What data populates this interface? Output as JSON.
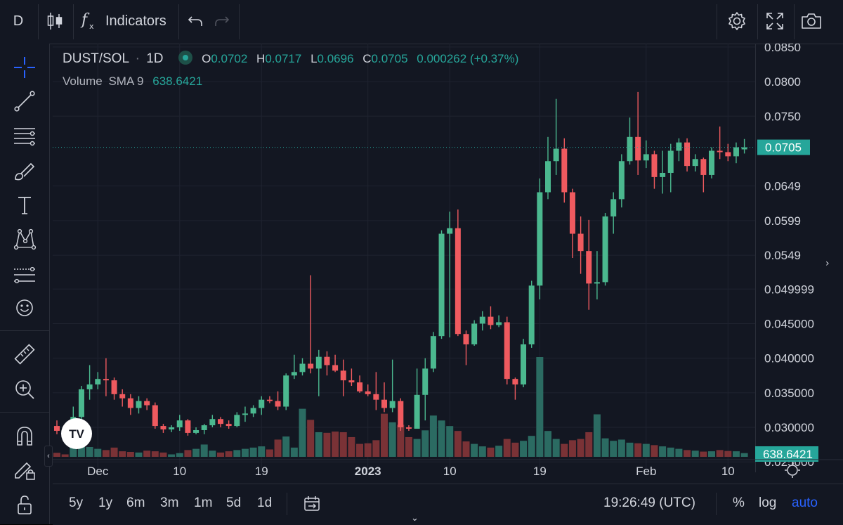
{
  "toolbar": {
    "symbol_short": "D",
    "indicators_label": "Indicators"
  },
  "icons": [
    "candles-icon",
    "fx-icon",
    "undo-icon",
    "redo-icon",
    "gear-icon",
    "fullscreen-icon",
    "camera-icon",
    "crosshair-icon",
    "trend-line-icon",
    "fib-icon",
    "brush-icon",
    "text-icon",
    "pattern-icon",
    "prediction-icon",
    "emoji-icon",
    "ruler-icon",
    "zoom-in-icon",
    "magnet-icon",
    "lock-drawing-icon",
    "lock-icon"
  ],
  "legend": {
    "symbol": "DUST/SOL",
    "separator": "·",
    "interval": "1D",
    "o_label": "O",
    "o_value": "0.0702",
    "h_label": "H",
    "h_value": "0.0717",
    "l_label": "L",
    "l_value": "0.0696",
    "c_label": "C",
    "c_value": "0.0705",
    "change": "0.000262 (+0.37%)",
    "volume_label": "Volume",
    "sma_label": "SMA 9",
    "volume_value": "638.6421"
  },
  "colors": {
    "up": "#26a69a",
    "up_candle": "#4bb88f",
    "down": "#ef5350",
    "down_candle": "#ef5a5f",
    "background": "#131722",
    "grid": "#1f2330",
    "price_tag": "#26a69a"
  },
  "price_axis": {
    "labels": [
      "0.0850",
      "0.0800",
      "0.0750",
      "0.0705",
      "0.0649",
      "0.0599",
      "0.0549",
      "0.049999",
      "0.045000",
      "0.040000",
      "0.035000",
      "0.030000",
      "0.025000"
    ],
    "current_price": "0.0705",
    "volume_tag": "638.6421"
  },
  "time_axis": {
    "labels": [
      "Dec",
      "10",
      "19",
      "2023",
      "10",
      "19",
      "Feb",
      "10"
    ]
  },
  "bottombar": {
    "ranges": [
      "5y",
      "1y",
      "6m",
      "3m",
      "1m",
      "5d",
      "1d"
    ],
    "clock": "19:26:49 (UTC)",
    "percent": "%",
    "log": "log",
    "auto": "auto"
  },
  "chart_data": {
    "type": "candlestick",
    "symbol": "DUST/SOL",
    "interval": "1D",
    "ylim": [
      0.0235,
      0.0855
    ],
    "candles": [
      {
        "o": 0.0302,
        "h": 0.031,
        "l": 0.029,
        "c": 0.0295,
        "v": 65
      },
      {
        "o": 0.0295,
        "h": 0.03,
        "l": 0.0285,
        "c": 0.0288,
        "v": 40
      },
      {
        "o": 0.029,
        "h": 0.033,
        "l": 0.027,
        "c": 0.0315,
        "v": 200
      },
      {
        "o": 0.0315,
        "h": 0.036,
        "l": 0.03,
        "c": 0.0355,
        "v": 180
      },
      {
        "o": 0.0355,
        "h": 0.039,
        "l": 0.034,
        "c": 0.0362,
        "v": 160
      },
      {
        "o": 0.0362,
        "h": 0.038,
        "l": 0.0355,
        "c": 0.037,
        "v": 130
      },
      {
        "o": 0.037,
        "h": 0.04,
        "l": 0.0345,
        "c": 0.0368,
        "v": 110
      },
      {
        "o": 0.0368,
        "h": 0.0372,
        "l": 0.034,
        "c": 0.0348,
        "v": 150
      },
      {
        "o": 0.0348,
        "h": 0.0355,
        "l": 0.033,
        "c": 0.0342,
        "v": 90
      },
      {
        "o": 0.0342,
        "h": 0.0348,
        "l": 0.0318,
        "c": 0.0328,
        "v": 80
      },
      {
        "o": 0.0328,
        "h": 0.0345,
        "l": 0.032,
        "c": 0.0338,
        "v": 70
      },
      {
        "o": 0.0338,
        "h": 0.0342,
        "l": 0.0325,
        "c": 0.0332,
        "v": 100
      },
      {
        "o": 0.0332,
        "h": 0.0336,
        "l": 0.0298,
        "c": 0.0302,
        "v": 90
      },
      {
        "o": 0.0302,
        "h": 0.0305,
        "l": 0.0292,
        "c": 0.0297,
        "v": 70
      },
      {
        "o": 0.0297,
        "h": 0.0303,
        "l": 0.0293,
        "c": 0.03,
        "v": 40
      },
      {
        "o": 0.03,
        "h": 0.0318,
        "l": 0.0295,
        "c": 0.031,
        "v": 60
      },
      {
        "o": 0.031,
        "h": 0.0312,
        "l": 0.0288,
        "c": 0.0292,
        "v": 110
      },
      {
        "o": 0.0292,
        "h": 0.03,
        "l": 0.029,
        "c": 0.0296,
        "v": 130
      },
      {
        "o": 0.0296,
        "h": 0.0305,
        "l": 0.029,
        "c": 0.0303,
        "v": 200
      },
      {
        "o": 0.0303,
        "h": 0.0318,
        "l": 0.03,
        "c": 0.0312,
        "v": 100
      },
      {
        "o": 0.0312,
        "h": 0.0315,
        "l": 0.03,
        "c": 0.0305,
        "v": 70
      },
      {
        "o": 0.0305,
        "h": 0.031,
        "l": 0.0298,
        "c": 0.0302,
        "v": 90
      },
      {
        "o": 0.0302,
        "h": 0.0322,
        "l": 0.03,
        "c": 0.0318,
        "v": 110
      },
      {
        "o": 0.0318,
        "h": 0.033,
        "l": 0.0308,
        "c": 0.032,
        "v": 130
      },
      {
        "o": 0.032,
        "h": 0.0332,
        "l": 0.0315,
        "c": 0.0328,
        "v": 150
      },
      {
        "o": 0.0328,
        "h": 0.0345,
        "l": 0.0318,
        "c": 0.034,
        "v": 170
      },
      {
        "o": 0.034,
        "h": 0.0345,
        "l": 0.0335,
        "c": 0.0338,
        "v": 120
      },
      {
        "o": 0.0338,
        "h": 0.0352,
        "l": 0.0325,
        "c": 0.033,
        "v": 280
      },
      {
        "o": 0.033,
        "h": 0.0378,
        "l": 0.0325,
        "c": 0.0375,
        "v": 330
      },
      {
        "o": 0.0375,
        "h": 0.0405,
        "l": 0.037,
        "c": 0.038,
        "v": 150
      },
      {
        "o": 0.038,
        "h": 0.04,
        "l": 0.0375,
        "c": 0.0392,
        "v": 780
      },
      {
        "o": 0.0392,
        "h": 0.052,
        "l": 0.0378,
        "c": 0.0385,
        "v": 600
      },
      {
        "o": 0.0385,
        "h": 0.0412,
        "l": 0.0345,
        "c": 0.0402,
        "v": 400
      },
      {
        "o": 0.0402,
        "h": 0.041,
        "l": 0.0375,
        "c": 0.039,
        "v": 390
      },
      {
        "o": 0.039,
        "h": 0.0405,
        "l": 0.038,
        "c": 0.0382,
        "v": 410
      },
      {
        "o": 0.0382,
        "h": 0.0398,
        "l": 0.0345,
        "c": 0.0368,
        "v": 400
      },
      {
        "o": 0.0368,
        "h": 0.0385,
        "l": 0.036,
        "c": 0.0365,
        "v": 320
      },
      {
        "o": 0.0365,
        "h": 0.0375,
        "l": 0.035,
        "c": 0.0352,
        "v": 210
      },
      {
        "o": 0.0352,
        "h": 0.0362,
        "l": 0.0345,
        "c": 0.0348,
        "v": 220
      },
      {
        "o": 0.0348,
        "h": 0.038,
        "l": 0.0325,
        "c": 0.034,
        "v": 270
      },
      {
        "o": 0.034,
        "h": 0.0365,
        "l": 0.0322,
        "c": 0.0328,
        "v": 700
      },
      {
        "o": 0.0328,
        "h": 0.0398,
        "l": 0.0322,
        "c": 0.0338,
        "v": 560
      },
      {
        "o": 0.0338,
        "h": 0.0342,
        "l": 0.0295,
        "c": 0.03,
        "v": 520
      },
      {
        "o": 0.03,
        "h": 0.0303,
        "l": 0.0295,
        "c": 0.0298,
        "v": 320
      },
      {
        "o": 0.0298,
        "h": 0.0385,
        "l": 0.0298,
        "c": 0.0347,
        "v": 290
      },
      {
        "o": 0.0347,
        "h": 0.04,
        "l": 0.031,
        "c": 0.0385,
        "v": 430
      },
      {
        "o": 0.0385,
        "h": 0.0438,
        "l": 0.038,
        "c": 0.0432,
        "v": 670
      },
      {
        "o": 0.0432,
        "h": 0.0585,
        "l": 0.0428,
        "c": 0.058,
        "v": 590
      },
      {
        "o": 0.058,
        "h": 0.0612,
        "l": 0.043,
        "c": 0.0588,
        "v": 500
      },
      {
        "o": 0.0588,
        "h": 0.0615,
        "l": 0.0432,
        "c": 0.0435,
        "v": 420
      },
      {
        "o": 0.0435,
        "h": 0.044,
        "l": 0.039,
        "c": 0.042,
        "v": 250
      },
      {
        "o": 0.042,
        "h": 0.0455,
        "l": 0.0418,
        "c": 0.045,
        "v": 210
      },
      {
        "o": 0.045,
        "h": 0.0468,
        "l": 0.044,
        "c": 0.046,
        "v": 170
      },
      {
        "o": 0.046,
        "h": 0.0475,
        "l": 0.0442,
        "c": 0.0448,
        "v": 150
      },
      {
        "o": 0.0448,
        "h": 0.0462,
        "l": 0.0445,
        "c": 0.0452,
        "v": 180
      },
      {
        "o": 0.0452,
        "h": 0.046,
        "l": 0.0362,
        "c": 0.037,
        "v": 290
      },
      {
        "o": 0.037,
        "h": 0.0372,
        "l": 0.034,
        "c": 0.0362,
        "v": 230
      },
      {
        "o": 0.0362,
        "h": 0.0428,
        "l": 0.0358,
        "c": 0.042,
        "v": 260
      },
      {
        "o": 0.042,
        "h": 0.0512,
        "l": 0.0415,
        "c": 0.0505,
        "v": 340
      },
      {
        "o": 0.0505,
        "h": 0.066,
        "l": 0.0485,
        "c": 0.064,
        "v": 1620
      },
      {
        "o": 0.064,
        "h": 0.072,
        "l": 0.063,
        "c": 0.0685,
        "v": 420
      },
      {
        "o": 0.0685,
        "h": 0.0775,
        "l": 0.0665,
        "c": 0.0703,
        "v": 290
      },
      {
        "o": 0.0703,
        "h": 0.0718,
        "l": 0.0625,
        "c": 0.064,
        "v": 210
      },
      {
        "o": 0.064,
        "h": 0.0645,
        "l": 0.0545,
        "c": 0.058,
        "v": 270
      },
      {
        "o": 0.058,
        "h": 0.0605,
        "l": 0.0522,
        "c": 0.0555,
        "v": 290
      },
      {
        "o": 0.0555,
        "h": 0.06,
        "l": 0.047,
        "c": 0.0508,
        "v": 400
      },
      {
        "o": 0.0508,
        "h": 0.0555,
        "l": 0.0485,
        "c": 0.051,
        "v": 690
      },
      {
        "o": 0.051,
        "h": 0.061,
        "l": 0.0505,
        "c": 0.0605,
        "v": 300
      },
      {
        "o": 0.0605,
        "h": 0.064,
        "l": 0.058,
        "c": 0.063,
        "v": 260
      },
      {
        "o": 0.063,
        "h": 0.0695,
        "l": 0.0618,
        "c": 0.0685,
        "v": 280
      },
      {
        "o": 0.0685,
        "h": 0.0748,
        "l": 0.068,
        "c": 0.072,
        "v": 230
      },
      {
        "o": 0.072,
        "h": 0.0785,
        "l": 0.0665,
        "c": 0.0686,
        "v": 220
      },
      {
        "o": 0.0686,
        "h": 0.0715,
        "l": 0.0675,
        "c": 0.0695,
        "v": 210
      },
      {
        "o": 0.0695,
        "h": 0.07,
        "l": 0.0645,
        "c": 0.0662,
        "v": 190
      },
      {
        "o": 0.0662,
        "h": 0.07,
        "l": 0.0638,
        "c": 0.0668,
        "v": 170
      },
      {
        "o": 0.0668,
        "h": 0.071,
        "l": 0.064,
        "c": 0.07,
        "v": 150
      },
      {
        "o": 0.07,
        "h": 0.0718,
        "l": 0.0685,
        "c": 0.0712,
        "v": 130
      },
      {
        "o": 0.0712,
        "h": 0.0718,
        "l": 0.067,
        "c": 0.0678,
        "v": 110
      },
      {
        "o": 0.0678,
        "h": 0.0695,
        "l": 0.067,
        "c": 0.0688,
        "v": 100
      },
      {
        "o": 0.0688,
        "h": 0.069,
        "l": 0.064,
        "c": 0.0665,
        "v": 85
      },
      {
        "o": 0.0665,
        "h": 0.0705,
        "l": 0.066,
        "c": 0.07,
        "v": 90
      },
      {
        "o": 0.07,
        "h": 0.0735,
        "l": 0.0688,
        "c": 0.0698,
        "v": 110
      },
      {
        "o": 0.0698,
        "h": 0.071,
        "l": 0.0685,
        "c": 0.0692,
        "v": 95
      },
      {
        "o": 0.0692,
        "h": 0.0712,
        "l": 0.0682,
        "c": 0.0705,
        "v": 90
      },
      {
        "o": 0.0702,
        "h": 0.0717,
        "l": 0.0696,
        "c": 0.0705,
        "v": 60
      }
    ]
  }
}
